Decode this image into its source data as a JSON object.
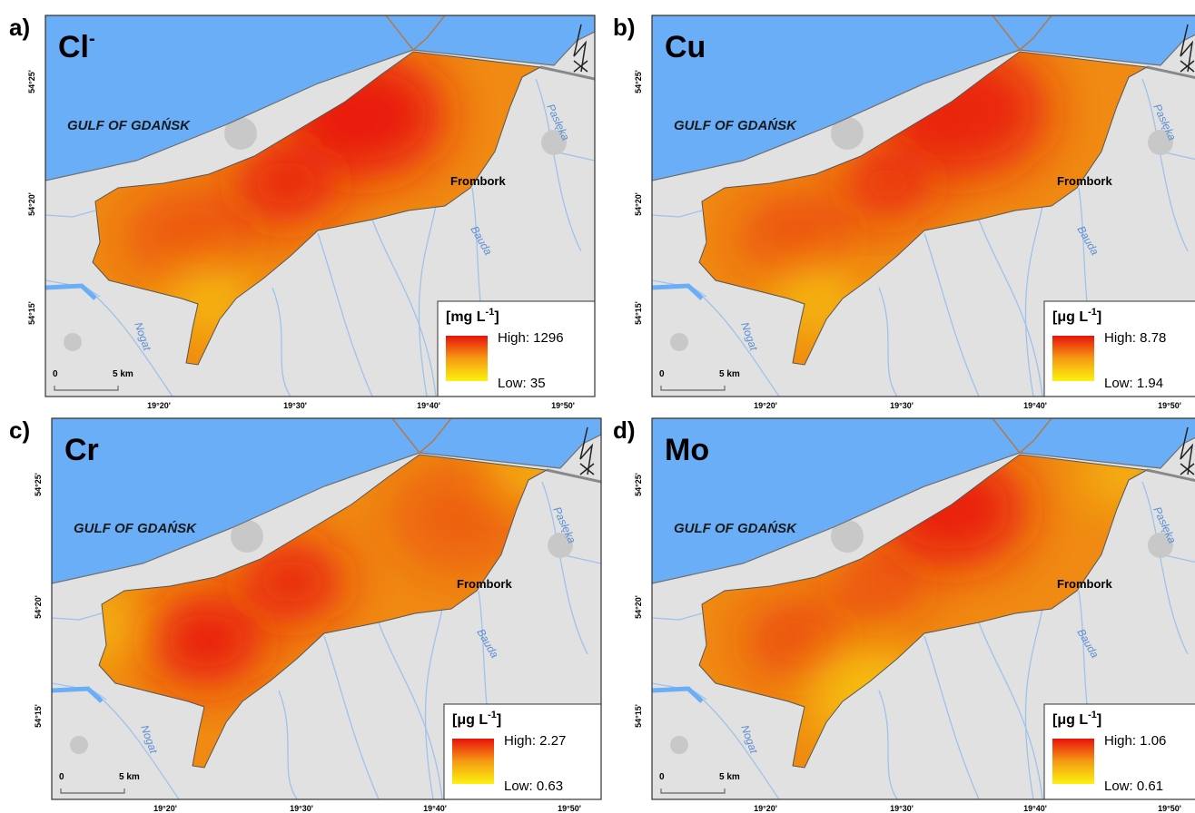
{
  "panels": [
    {
      "label": "a)",
      "element": {
        "base": "Cl",
        "sup": "-"
      },
      "legend": {
        "unit": {
          "before": "[mg L",
          "sup": "-1",
          "after": "]"
        },
        "high": "High: 1296",
        "low": "Low: 35"
      }
    },
    {
      "label": "b)",
      "element": {
        "base": "Cu"
      },
      "legend": {
        "unit": {
          "before": "[μg L",
          "sup": "-1",
          "after": "]"
        },
        "high": "High: 8.78",
        "low": "Low: 1.94"
      }
    },
    {
      "label": "c)",
      "element": {
        "base": "Cr"
      },
      "legend": {
        "unit": {
          "before": "[μg L",
          "sup": "-1",
          "after": "]"
        },
        "high": "High: 2.27",
        "low": "Low: 0.63"
      }
    },
    {
      "label": "d)",
      "element": {
        "base": "Mo"
      },
      "legend": {
        "unit": {
          "before": "[μg L",
          "sup": "-1",
          "after": "]"
        },
        "high": "High: 1.06",
        "low": "Low: 0.61"
      }
    }
  ],
  "map_labels": {
    "sea": "GULF OF GDAŃSK",
    "town": "Frombork",
    "rivers": [
      "Pasłęka",
      "Bauda",
      "Nogat"
    ]
  },
  "scale": {
    "zero": "0",
    "distance": "5 km"
  },
  "latitudes": [
    "54°25'",
    "54°20'",
    "54°15'"
  ],
  "longitudes": [
    "19°20'",
    "19°30'",
    "19°40'",
    "19°50'"
  ]
}
